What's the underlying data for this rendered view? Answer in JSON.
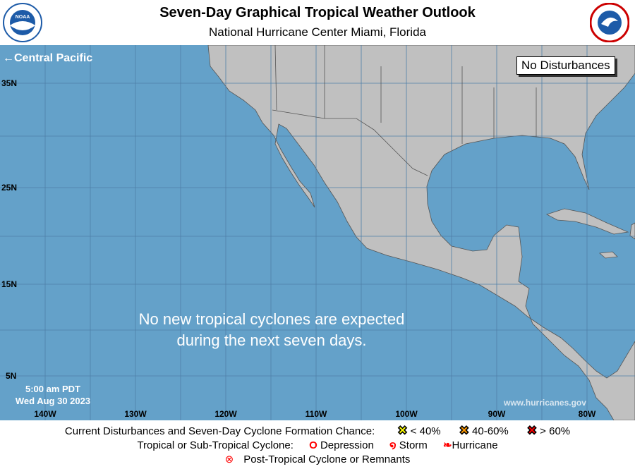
{
  "header": {
    "title": "Seven-Day Graphical Tropical Weather Outlook",
    "subtitle": "National Hurricane Center  Miami, Florida",
    "left_logo": "NOAA",
    "right_logo": "National Weather Service"
  },
  "map": {
    "nav_link": "←Central Pacific",
    "status_box": "No Disturbances",
    "message_line1": "No new tropical cyclones are expected",
    "message_line2": "during the next seven days.",
    "time": "5:00 am PDT",
    "date": "Wed Aug 30 2023",
    "watermark": "www.hurricanes.gov",
    "lat_labels": [
      "35N",
      "25N",
      "15N",
      "5N"
    ],
    "lon_labels": [
      "140W",
      "130W",
      "120W",
      "110W",
      "100W",
      "90W",
      "80W"
    ],
    "colors": {
      "ocean": "#64a1c9",
      "land": "#c0c0c0"
    }
  },
  "legend": {
    "row1_label": "Current Disturbances and Seven-Day Cyclone Formation Chance:",
    "low": "< 40%",
    "mid": "40-60%",
    "high": "> 60%",
    "row2_label": "Tropical or Sub-Tropical Cyclone:",
    "depression": "Depression",
    "storm": "Storm",
    "hurricane": "Hurricane",
    "post_tropical": "Post-Tropical Cyclone or Remnants",
    "colors": {
      "low": "#ffff00",
      "mid": "#ff9900",
      "high": "#ff0000",
      "cyclone": "#ff0000"
    }
  }
}
